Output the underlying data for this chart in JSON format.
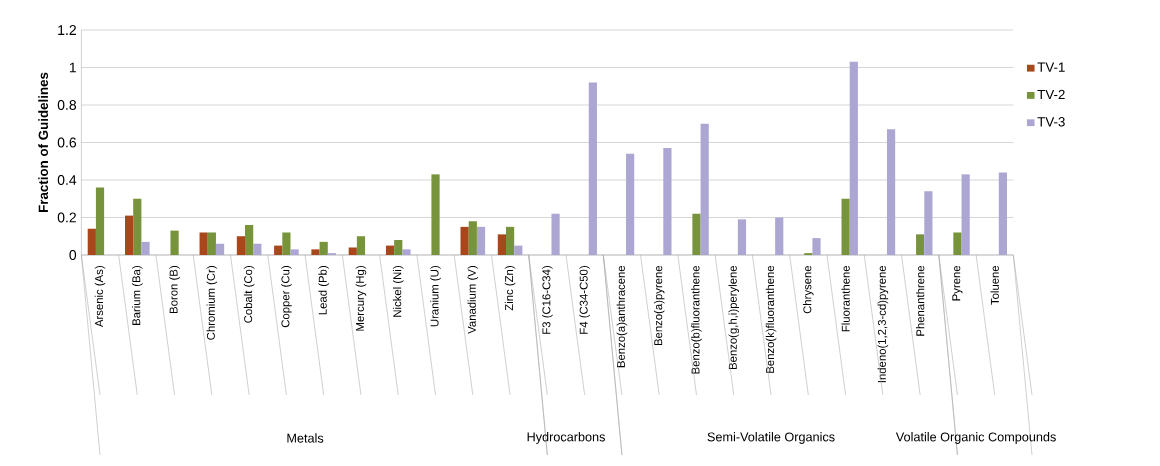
{
  "chart_data": {
    "type": "bar",
    "ylabel": "Fraction of Guidelines",
    "categories": [
      "Arsenic (As)",
      "Barium (Ba)",
      "Boron (B)",
      "Chromium (Cr)",
      "Cobalt (Co)",
      "Copper (Cu)",
      "Lead (Pb)",
      "Mercury (Hg)",
      "Nickel (Ni)",
      "Uranium (U)",
      "Vanadium (V)",
      "Zinc (Zn)",
      "F3 (C16-C34)",
      "F4 (C34-C50)",
      "Benzo(a)anthracene",
      "Benzo(a)pyrene",
      "Benzo(b)fluoranthene",
      "Benzo(g,h,i)perylene",
      "Benzo(k)fluoranthene",
      "Chrysene",
      "Fluoranthene",
      "Indeno(1,2,3-cd)pyrene",
      "Phenanthrene",
      "Pyrene",
      "Toluene"
    ],
    "series": [
      {
        "name": "TV-1",
        "color": "#a8461c",
        "values": [
          0.14,
          0.21,
          null,
          0.12,
          0.1,
          0.05,
          0.03,
          0.04,
          0.05,
          null,
          0.15,
          0.11,
          null,
          null,
          null,
          null,
          null,
          null,
          null,
          null,
          null,
          null,
          null,
          null,
          null
        ]
      },
      {
        "name": "TV-2",
        "color": "#77933c",
        "values": [
          0.36,
          0.3,
          0.13,
          0.12,
          0.16,
          0.12,
          0.07,
          0.1,
          0.08,
          0.43,
          0.18,
          0.15,
          null,
          null,
          null,
          null,
          0.22,
          null,
          null,
          0.01,
          0.3,
          null,
          0.11,
          0.12,
          null
        ]
      },
      {
        "name": "TV-3",
        "color": "#aba6d2",
        "values": [
          null,
          0.07,
          null,
          0.06,
          0.06,
          0.03,
          0.01,
          null,
          0.03,
          null,
          0.15,
          0.05,
          0.22,
          0.92,
          0.54,
          0.57,
          0.7,
          0.19,
          0.2,
          0.09,
          1.03,
          0.67,
          0.34,
          0.43,
          0.44
        ]
      }
    ],
    "annotations": [
      "Metals",
      "Hydrocarbons",
      "Semi-Volatile Organics",
      "Volatile Organic Compounds"
    ],
    "ylim": [
      0,
      1.2
    ],
    "yticks": [
      0,
      0.2,
      0.4,
      0.6,
      0.8,
      1,
      1.2
    ],
    "grid": "y",
    "legend": "right"
  }
}
